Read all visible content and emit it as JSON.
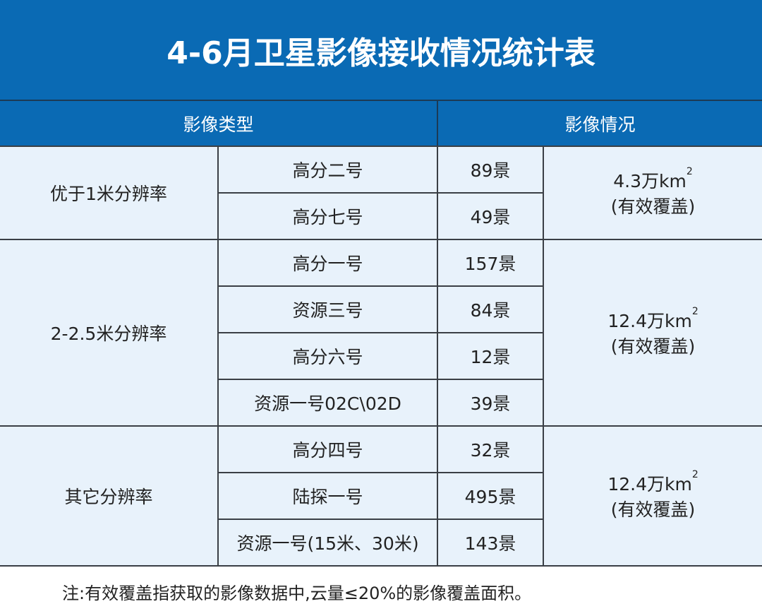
{
  "title": "4-6月卫星影像接收情况统计表",
  "headers": {
    "type": "影像类型",
    "status": "影像情况"
  },
  "groups": [
    {
      "category": "优于1米分辨率",
      "coverage": "4.3万km",
      "coverage_sup": "2",
      "coverage_note": "(有效覆盖)",
      "rows": [
        {
          "satellite": "高分二号",
          "count": "89景"
        },
        {
          "satellite": "高分七号",
          "count": "49景"
        }
      ]
    },
    {
      "category": "2-2.5米分辨率",
      "coverage": "12.4万km",
      "coverage_sup": "2",
      "coverage_note": "(有效覆盖)",
      "rows": [
        {
          "satellite": "高分一号",
          "count": "157景"
        },
        {
          "satellite": "资源三号",
          "count": "84景"
        },
        {
          "satellite": "高分六号",
          "count": "12景"
        },
        {
          "satellite": "资源一号02C\\02D",
          "count": "39景"
        }
      ]
    },
    {
      "category": "其它分辨率",
      "coverage": "12.4万km",
      "coverage_sup": "2",
      "coverage_note": "(有效覆盖)",
      "rows": [
        {
          "satellite": "高分四号",
          "count": "32景"
        },
        {
          "satellite": "陆探一号",
          "count": "495景"
        },
        {
          "satellite": "资源一号(15米、30米)",
          "count": "143景"
        }
      ]
    }
  ],
  "footnote": "注:有效覆盖指获取的影像数据中,云量≤20%的影像覆盖面积。",
  "colors": {
    "header_bg": "#0a6ab4",
    "cell_bg": "#e8f2fb",
    "border": "#3a3f45"
  }
}
